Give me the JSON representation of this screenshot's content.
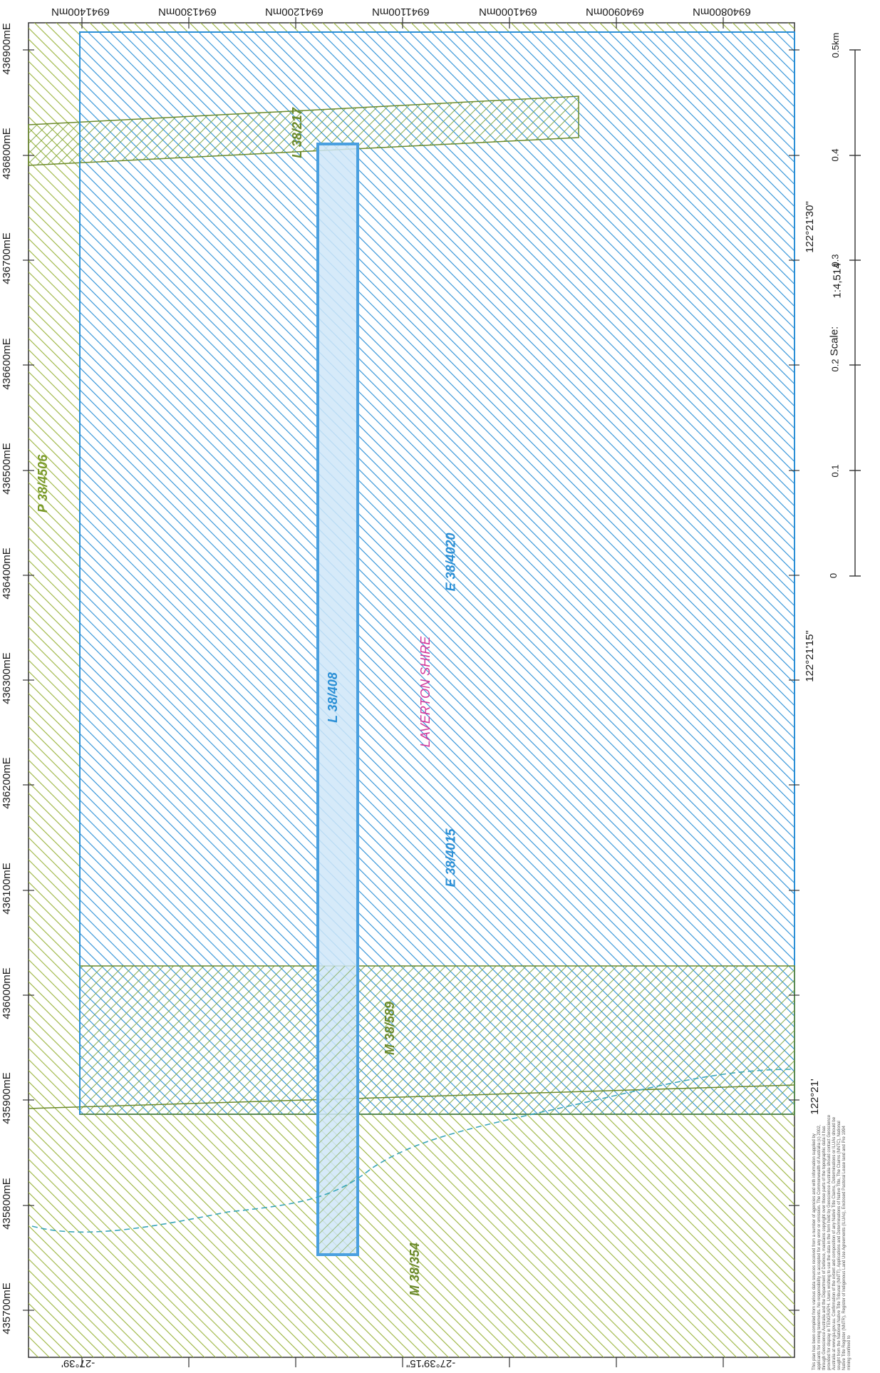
{
  "colors": {
    "blue": "#2a8fd6",
    "green": "#8aa83a",
    "shire": "#d4389b",
    "lease_fill": "#cfe6f8"
  },
  "easting_labels": [
    "436900mE",
    "436800mE",
    "436700mE",
    "436600mE",
    "436500mE",
    "436400mE",
    "436300mE",
    "436200mE",
    "436100mE",
    "436000mE",
    "435900mE",
    "435800mE",
    "435700mE"
  ],
  "northing_labels": [
    "6941400mN",
    "6941300mN",
    "6941200mN",
    "6941100mN",
    "6941000mN",
    "6940900mN",
    "6940800mN"
  ],
  "lat_labels": [
    "-27°39'",
    "-27°39'15\""
  ],
  "lon_labels": [
    "122°21'30\"",
    "122°21'15\"",
    "122°21'"
  ],
  "scale": {
    "label": "Scale:",
    "ratio": "1:4,514",
    "ticks": [
      "0",
      "0.1",
      "0.2",
      "0.3",
      "0.4",
      "0.5km"
    ]
  },
  "tenements": {
    "p38_4506": "P 38/4506",
    "l38_217": "L 38/217",
    "l38_408": "L 38/408",
    "shire": "LAVERTON SHIRE",
    "e38_4020": "E 38/4020",
    "e38_4015": "E 38/4015",
    "m38_589": "M 38/589",
    "m38_354": "M 38/354"
  },
  "disclaimer": "This plan has been compiled from various data sources received from a number of agencies and with information supplied by applicants for mining tenements. No responsibility is accepted for any error or omission. The Commonwealth of Australia (c) 2002, through Geoscience Australia and the Department of Defence, maintains copyright over those parts of the topographic data it has provided for display in TENGRAPH. Users wishing to use the data in the form held by Geoscience Australia should contact Geoscience Australia at www.ga.gov.au. Confirmation of the extent and composition of any Native Title Claims, Determinations or ILUAs should be sought from the National Native Title Tribunal (NNTT). Applications and Determinations of Native Title, The Claims (NNTC), National Native Title Register (NNTR), Register of Indigenous Land Use Agreements (ILUAs), Enclosed Pastoral Lease land and Pre 1994 mining confined to"
}
